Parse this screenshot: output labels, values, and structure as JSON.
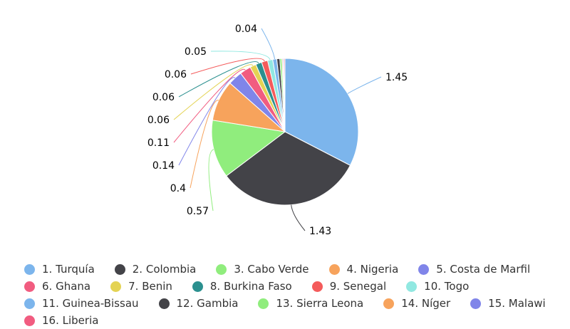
{
  "chart_data": {
    "type": "pie",
    "title": "",
    "series": [
      {
        "label": "1. Turquía",
        "value": 1.45,
        "color": "#7cb5ec"
      },
      {
        "label": "2. Colombia",
        "value": 1.43,
        "color": "#434348"
      },
      {
        "label": "3. Cabo Verde",
        "value": 0.57,
        "color": "#90ed7d"
      },
      {
        "label": "4. Nigeria",
        "value": 0.4,
        "color": "#f7a35c"
      },
      {
        "label": "5. Costa de Marfil",
        "value": 0.14,
        "color": "#8085e9"
      },
      {
        "label": "6. Ghana",
        "value": 0.11,
        "color": "#f15c80"
      },
      {
        "label": "7. Benin",
        "value": 0.06,
        "color": "#e4d354"
      },
      {
        "label": "8. Burkina Faso",
        "value": 0.06,
        "color": "#2b908f"
      },
      {
        "label": "9. Senegal",
        "value": 0.06,
        "color": "#f45b5b"
      },
      {
        "label": "10. Togo",
        "value": 0.05,
        "color": "#91e8e1"
      },
      {
        "label": "11. Guinea-Bissau",
        "value": 0.04,
        "color": "#7cb5ec"
      },
      {
        "label": "12. Gambia",
        "value": 0.03,
        "color": "#434348"
      },
      {
        "label": "13. Sierra Leona",
        "value": 0.02,
        "color": "#90ed7d"
      },
      {
        "label": "14. Níger",
        "value": 0.01,
        "color": "#f7a35c"
      },
      {
        "label": "15. Malawi",
        "value": 0.01,
        "color": "#8085e9"
      },
      {
        "label": "16. Liberia",
        "value": 0.01,
        "color": "#f15c80"
      }
    ],
    "data_labels": [
      "1.45",
      "1.43",
      "0.57",
      "0.4",
      "0.14",
      "0.11",
      "0.06",
      "0.06",
      "0.06",
      "0.05",
      "0.04"
    ],
    "legend_position": "bottom"
  }
}
